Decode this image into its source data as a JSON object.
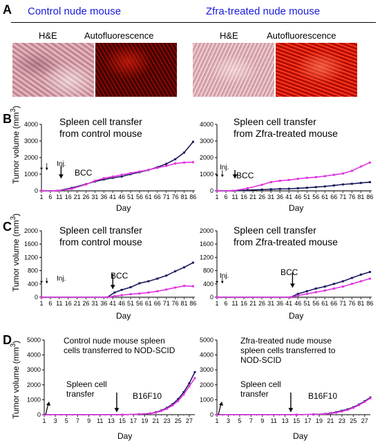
{
  "panel_a": {
    "letter": "A",
    "left_header": "Control nude mouse",
    "right_header": "Zfra-treated nude mouse",
    "he_label": "H&E",
    "af_label": "Autofluorescence"
  },
  "panel_b": {
    "letter": "B",
    "left_title_1": "Spleen cell transfer",
    "left_title_2": "from control mouse",
    "right_title_1": "Spleen cell transfer",
    "right_title_2": "from Zfra-treated mouse",
    "inj": "Inj.",
    "bcc": "BCC"
  },
  "panel_c": {
    "letter": "C",
    "left_title_1": "Spleen cell transfer",
    "left_title_2": "from control mouse",
    "right_title_1": "Spleen cell transfer",
    "right_title_2": "from Zfra-treated mouse",
    "inj": "Inj.",
    "bcc": "BCC"
  },
  "panel_d": {
    "letter": "D",
    "left_title_1": "Control nude mouse spleen",
    "left_title_2": "cells transferred to NOD-SCID",
    "right_title_1": "Zfra-treated nude mouse",
    "right_title_2": "spleen cells transferred to",
    "right_title_3": "NOD-SCID",
    "spleen_1": "Spleen cell",
    "spleen_2": "transfer",
    "b16": "B16F10"
  },
  "axis": {
    "xlabel": "Day",
    "ylabel_prefix": "Tumor volume (mm",
    "ylabel_sup": "3",
    "ylabel_suffix": ")"
  },
  "colors": {
    "navy": "#1a1a5e",
    "magenta": "#e033e0"
  },
  "chart_data": [
    {
      "type": "line",
      "id": "B-left",
      "x_ticks": [
        "1",
        "6",
        "11",
        "16",
        "21",
        "26",
        "31",
        "36",
        "41",
        "46",
        "51",
        "56",
        "61",
        "66",
        "71",
        "76",
        "81",
        "86"
      ],
      "ylim": [
        0,
        4000
      ],
      "y_ticks": [
        "0",
        "1000",
        "2000",
        "3000",
        "4000"
      ],
      "xlabel": "Day",
      "ylabel": "Tumor volume (mm3)",
      "series": [
        {
          "color": "navy",
          "x": [
            1,
            10,
            18,
            26,
            31,
            36,
            41,
            46,
            51,
            56,
            61,
            66,
            71,
            76,
            81,
            86
          ],
          "y": [
            0,
            0,
            170,
            400,
            560,
            680,
            780,
            860,
            1000,
            1120,
            1250,
            1420,
            1620,
            1900,
            2300,
            2950
          ]
        },
        {
          "color": "magenta",
          "x": [
            1,
            10,
            18,
            26,
            31,
            36,
            41,
            46,
            51,
            56,
            61,
            66,
            71,
            76,
            81,
            86
          ],
          "y": [
            0,
            0,
            120,
            380,
            600,
            760,
            850,
            960,
            1060,
            1160,
            1260,
            1380,
            1500,
            1640,
            1700,
            1720
          ]
        }
      ]
    },
    {
      "type": "line",
      "id": "B-right",
      "x_ticks": [
        "1",
        "6",
        "11",
        "16",
        "21",
        "26",
        "31",
        "36",
        "41",
        "46",
        "51",
        "56",
        "61",
        "66",
        "71",
        "76",
        "81",
        "86"
      ],
      "ylim": [
        0,
        4000
      ],
      "y_ticks": [
        "0",
        "1000",
        "2000",
        "3000",
        "4000"
      ],
      "xlabel": "Day",
      "ylabel": "Tumor volume (mm3)",
      "series": [
        {
          "color": "navy",
          "x": [
            1,
            10,
            18,
            26,
            31,
            36,
            41,
            46,
            51,
            56,
            61,
            66,
            71,
            76,
            81,
            86
          ],
          "y": [
            0,
            0,
            40,
            70,
            90,
            110,
            120,
            150,
            180,
            220,
            260,
            320,
            380,
            420,
            470,
            520
          ]
        },
        {
          "color": "magenta",
          "x": [
            1,
            10,
            18,
            26,
            31,
            36,
            41,
            46,
            51,
            56,
            61,
            66,
            71,
            76,
            81,
            86
          ],
          "y": [
            0,
            0,
            150,
            360,
            520,
            600,
            650,
            720,
            780,
            820,
            880,
            960,
            1040,
            1200,
            1460,
            1700
          ]
        }
      ]
    },
    {
      "type": "line",
      "id": "C-left",
      "x_ticks": [
        "1",
        "6",
        "11",
        "16",
        "21",
        "26",
        "31",
        "36",
        "41",
        "46",
        "51",
        "56",
        "61",
        "66",
        "71",
        "76",
        "81",
        "86"
      ],
      "ylim": [
        0,
        2000
      ],
      "y_ticks": [
        "0",
        "400",
        "800",
        "1200",
        "1600",
        "2000"
      ],
      "xlabel": "Day",
      "ylabel": "Tumor volume (mm3)",
      "series": [
        {
          "color": "navy",
          "x": [
            1,
            38,
            42,
            46,
            51,
            56,
            61,
            66,
            71,
            76,
            81,
            86
          ],
          "y": [
            0,
            0,
            140,
            220,
            300,
            420,
            480,
            560,
            650,
            780,
            900,
            1040
          ]
        },
        {
          "color": "magenta",
          "x": [
            1,
            38,
            42,
            46,
            51,
            56,
            61,
            66,
            71,
            76,
            81,
            86
          ],
          "y": [
            0,
            0,
            30,
            60,
            90,
            110,
            140,
            180,
            230,
            290,
            340,
            330
          ]
        }
      ]
    },
    {
      "type": "line",
      "id": "C-right",
      "x_ticks": [
        "1",
        "6",
        "11",
        "16",
        "21",
        "26",
        "31",
        "36",
        "41",
        "46",
        "51",
        "56",
        "61",
        "66",
        "71",
        "76",
        "81",
        "86"
      ],
      "ylim": [
        0,
        2000
      ],
      "y_ticks": [
        "0",
        "400",
        "800",
        "1200",
        "1600",
        "2000"
      ],
      "xlabel": "Day",
      "ylabel": "Tumor volume (mm3)",
      "series": [
        {
          "color": "navy",
          "x": [
            1,
            42,
            46,
            51,
            56,
            61,
            66,
            71,
            76,
            81,
            86
          ],
          "y": [
            0,
            0,
            100,
            180,
            260,
            320,
            400,
            480,
            580,
            680,
            760
          ]
        },
        {
          "color": "magenta",
          "x": [
            1,
            42,
            46,
            51,
            56,
            61,
            66,
            71,
            76,
            81,
            86
          ],
          "y": [
            0,
            0,
            50,
            100,
            150,
            200,
            260,
            320,
            400,
            480,
            560
          ]
        }
      ]
    },
    {
      "type": "line",
      "id": "D-left",
      "x_ticks": [
        "1",
        "3",
        "5",
        "7",
        "9",
        "11",
        "13",
        "15",
        "17",
        "19",
        "21",
        "23",
        "25",
        "27"
      ],
      "ylim": [
        0,
        5000
      ],
      "y_ticks": [
        "0",
        "1000",
        "2000",
        "3000",
        "4000",
        "5000"
      ],
      "xlabel": "Day",
      "ylabel": "Tumor volume (mm3)",
      "series": [
        {
          "color": "navy",
          "x": [
            1,
            15,
            18,
            20,
            21,
            22,
            23,
            24,
            25,
            26,
            27,
            28
          ],
          "y": [
            0,
            0,
            30,
            80,
            160,
            280,
            460,
            700,
            1040,
            1500,
            2100,
            2850
          ]
        },
        {
          "color": "magenta",
          "x": [
            1,
            15,
            18,
            20,
            21,
            22,
            23,
            24,
            25,
            26,
            27,
            28
          ],
          "y": [
            0,
            0,
            30,
            70,
            140,
            250,
            400,
            620,
            920,
            1350,
            1900,
            2450
          ]
        }
      ]
    },
    {
      "type": "line",
      "id": "D-right",
      "x_ticks": [
        "1",
        "3",
        "5",
        "7",
        "9",
        "11",
        "13",
        "15",
        "17",
        "19",
        "21",
        "23",
        "25",
        "27"
      ],
      "ylim": [
        0,
        5000
      ],
      "y_ticks": [
        "0",
        "1000",
        "2000",
        "3000",
        "4000",
        "5000"
      ],
      "xlabel": "Day",
      "ylabel": "Tumor volume (mm3)",
      "series": [
        {
          "color": "navy",
          "x": [
            1,
            15,
            18,
            20,
            21,
            22,
            23,
            24,
            25,
            26,
            27,
            28
          ],
          "y": [
            0,
            0,
            20,
            50,
            100,
            170,
            260,
            360,
            500,
            680,
            900,
            1150
          ]
        },
        {
          "color": "magenta",
          "x": [
            1,
            15,
            18,
            20,
            21,
            22,
            23,
            24,
            25,
            26,
            27,
            28
          ],
          "y": [
            0,
            0,
            20,
            40,
            80,
            140,
            220,
            320,
            460,
            640,
            860,
            1100
          ]
        }
      ]
    }
  ]
}
